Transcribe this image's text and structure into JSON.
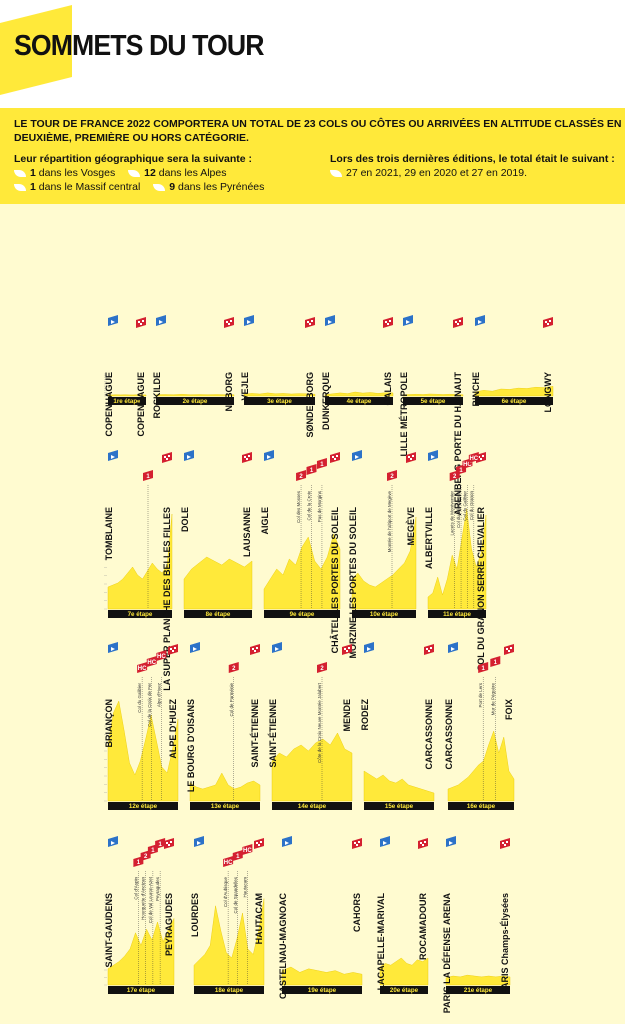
{
  "header": {
    "title": "SOMMETS DU TOUR"
  },
  "intro": {
    "text": "LE TOUR DE FRANCE 2022 COMPORTERA UN TOTAL DE 23 COLS OU CÔTES OU ARRIVÉES EN ALTITUDE CLASSÉS EN DEUXIÈME, PREMIÈRE OU HORS CATÉGORIE.",
    "left_heading": "Leur répartition géographique sera la suivante :",
    "distribution": [
      {
        "count": "1",
        "text": "dans les Vosges"
      },
      {
        "count": "12",
        "text": "dans les Alpes"
      },
      {
        "count": "1",
        "text": "dans le Massif central"
      },
      {
        "count": "9",
        "text": "dans les Pyrénées"
      }
    ],
    "right_heading": "Lors des trois dernières éditions, le total était le suivant :",
    "history": "27 en 2021, 29 en 2020 et 27 en 2019."
  },
  "colors": {
    "yellow": "#ffe93a",
    "pale": "#fffbd0",
    "blue": "#2c72c8",
    "red": "#d42030",
    "dark": "#111111"
  },
  "chart_data": {
    "type": "area",
    "stages": [
      {
        "label": "1re étape",
        "start": "COPENHAGUE",
        "finish": "COPENHAGUE",
        "climbs": [],
        "profile": [
          5,
          5,
          6,
          5,
          6,
          5,
          5,
          6,
          5,
          5
        ]
      },
      {
        "label": "2e étape",
        "start": "ROSKILDE",
        "finish": "NYBORG",
        "climbs": [],
        "profile": [
          6,
          7,
          6,
          8,
          6,
          7,
          6,
          7,
          6,
          6
        ]
      },
      {
        "label": "3e étape",
        "start": "VEJLE",
        "finish": "SØNDERBORG",
        "climbs": [],
        "profile": [
          8,
          12,
          9,
          14,
          10,
          12,
          9,
          11,
          10,
          8
        ]
      },
      {
        "label": "4e étape",
        "start": "DUNKERQUE",
        "finish": "CALAIS",
        "climbs": [],
        "profile": [
          6,
          10,
          14,
          11,
          18,
          13,
          16,
          12,
          15,
          14
        ]
      },
      {
        "label": "5e étape",
        "start": "LILLE MÉTROPOLE",
        "finish": "ARENBERG PORTE DU HAINAUT",
        "climbs": [],
        "profile": [
          6,
          7,
          8,
          7,
          9,
          8,
          7,
          8,
          7,
          6
        ]
      },
      {
        "label": "6e étape",
        "start": "BINCHE",
        "finish": "LONGWY",
        "climbs": [],
        "profile": [
          18,
          26,
          22,
          32,
          30,
          36,
          34,
          40,
          38,
          44
        ]
      },
      {
        "label": "7e étape",
        "start": "TOMBLAINE",
        "finish": "LA SUPER PLANCHE DES BELLES FILLES",
        "climbs": [
          {
            "cat": "1"
          }
        ],
        "profile": [
          22,
          24,
          26,
          30,
          36,
          42,
          34,
          30,
          38,
          46,
          40,
          36,
          44,
          95
        ]
      },
      {
        "label": "8e étape",
        "start": "DOLE",
        "finish": "LAUSANNE",
        "climbs": [],
        "profile": [
          30,
          40,
          46,
          52,
          48,
          44,
          50,
          46,
          42,
          48
        ]
      },
      {
        "label": "9e étape",
        "start": "AIGLE",
        "finish": "CHÂTEL LES PORTES DU SOLEIL",
        "climbs": [
          {
            "cat": "2",
            "name": "Col des Mosses"
          },
          {
            "cat": "1",
            "name": "Col de la Croix"
          },
          {
            "cat": "1",
            "name": "Pas de Morgins"
          }
        ],
        "profile": [
          20,
          30,
          40,
          34,
          50,
          44,
          62,
          72,
          48,
          40,
          52,
          75,
          60
        ]
      },
      {
        "label": "10e étape",
        "start": "MORZINE LES PORTES DU SOLEIL",
        "finish": "MEGÈVE",
        "climbs": [
          {
            "cat": "2",
            "name": "Montée de l'altiport de Megève"
          }
        ],
        "profile": [
          30,
          36,
          28,
          24,
          22,
          26,
          30,
          34,
          40,
          46,
          58,
          92
        ]
      },
      {
        "label": "11e étape",
        "start": "ALBERTVILLE",
        "finish": "COL DU GRANON SERRE CHEVALIER",
        "climbs": [
          {
            "cat": "2",
            "name": "Lacets de Montvernier"
          },
          {
            "cat": "1",
            "name": "Col du Télégraphe"
          },
          {
            "cat": "HC",
            "name": "Col du Galibier"
          },
          {
            "cat": "HC",
            "name": "Col du Granon"
          }
        ],
        "profile": [
          12,
          16,
          32,
          14,
          30,
          54,
          40,
          70,
          100,
          60,
          42,
          56,
          94
        ]
      },
      {
        "label": "12e étape",
        "start": "BRIANÇON",
        "finish": "ALPE D'HUEZ",
        "climbs": [
          {
            "cat": "HC",
            "name": "Col du Galibier"
          },
          {
            "cat": "HC",
            "name": "Col de la Croix de Fer"
          },
          {
            "cat": "HC",
            "name": "Alpe d'Huez"
          }
        ],
        "profile": [
          56,
          88,
          100,
          70,
          38,
          26,
          40,
          62,
          86,
          60,
          34,
          28,
          52,
          82
        ]
      },
      {
        "label": "13e étape",
        "start": "LE BOURG D'OISANS",
        "finish": "SAINT-ÉTIENNE",
        "climbs": [
          {
            "cat": "2",
            "name": "Col de Parménie"
          }
        ],
        "profile": [
          18,
          14,
          12,
          14,
          16,
          28,
          16,
          12,
          14,
          18,
          20,
          16
        ]
      },
      {
        "label": "14e étape",
        "start": "SAINT-ÉTIENNE",
        "finish": "MENDE",
        "climbs": [
          {
            "cat": "2",
            "name": "Côte de la Croix Neuve Montée Jalabert"
          }
        ],
        "profile": [
          40,
          48,
          44,
          52,
          56,
          50,
          58,
          62,
          56,
          68,
          52,
          48
        ]
      },
      {
        "label": "15e étape",
        "start": "RODEZ",
        "finish": "CARCASSONNE",
        "climbs": [],
        "profile": [
          30,
          26,
          22,
          26,
          20,
          18,
          22,
          16,
          14,
          12,
          10,
          8
        ]
      },
      {
        "label": "16e étape",
        "start": "CARCASSONNE",
        "finish": "FOIX",
        "climbs": [
          {
            "cat": "1",
            "name": "Port de Lers"
          },
          {
            "cat": "1",
            "name": "Mur de Péguère"
          }
        ],
        "profile": [
          12,
          14,
          16,
          20,
          24,
          30,
          36,
          40,
          56,
          70,
          48,
          64,
          30,
          22
        ]
      },
      {
        "label": "17e étape",
        "start": "SAINT-GAUDENS",
        "finish": "PEYRAGUDES",
        "climbs": [
          {
            "cat": "1",
            "name": "Col d'Aspin"
          },
          {
            "cat": "2",
            "name": "Hourquette d'Ancizan"
          },
          {
            "cat": "1",
            "name": "Col de Val Louron-Azet"
          },
          {
            "cat": "1",
            "name": "Peyragudes"
          }
        ],
        "profile": [
          18,
          22,
          26,
          32,
          40,
          58,
          44,
          62,
          50,
          70,
          48,
          62,
          74
        ]
      },
      {
        "label": "18e étape",
        "start": "LOURDES",
        "finish": "HAUTACAM",
        "climbs": [
          {
            "cat": "HC",
            "name": "Col d'Aubisque"
          },
          {
            "cat": "1",
            "name": "Col de Spandelles"
          },
          {
            "cat": "HC",
            "name": "Hautacam"
          }
        ],
        "profile": [
          22,
          28,
          34,
          44,
          88,
          60,
          36,
          30,
          52,
          80,
          40,
          34,
          60,
          96
        ]
      },
      {
        "label": "19e étape",
        "start": "CASTELNAU-MAGNOAC",
        "finish": "CAHORS",
        "climbs": [],
        "profile": [
          16,
          20,
          14,
          18,
          16,
          14,
          16,
          12,
          14,
          12
        ]
      },
      {
        "label": "20e étape",
        "start": "LACAPELLE-MARIVAL",
        "finish": "ROCAMADOUR",
        "climbs": [],
        "profile": [
          20,
          24,
          22,
          26,
          30,
          24,
          22,
          28,
          26,
          30
        ]
      },
      {
        "label": "21e étape",
        "start": "PARIS LA DÉFENSE ARENA",
        "finish": "PARIS Champs-Élysées",
        "climbs": [],
        "profile": [
          8,
          10,
          9,
          11,
          10,
          9,
          10,
          9,
          10,
          9
        ]
      }
    ]
  }
}
